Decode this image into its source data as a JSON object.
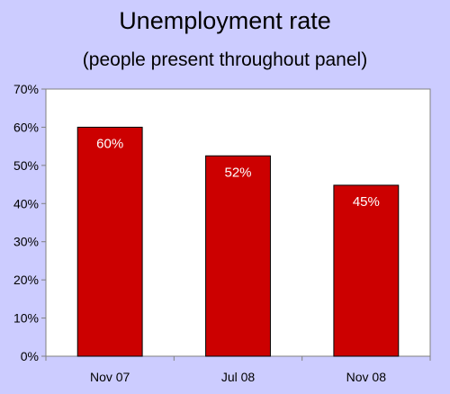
{
  "chart_data": {
    "type": "bar",
    "title": "Unemployment rate",
    "subtitle": "(people present throughout panel)",
    "categories": [
      "Nov 07",
      "Jul 08",
      "Nov 08"
    ],
    "values": [
      60,
      52.5,
      44.8
    ],
    "data_labels": [
      "60%",
      "52%",
      "45%"
    ],
    "ylim": [
      0,
      70
    ],
    "yticks": [
      0,
      10,
      20,
      30,
      40,
      50,
      60,
      70
    ],
    "ytick_labels": [
      "0%",
      "10%",
      "20%",
      "30%",
      "40%",
      "50%",
      "60%",
      "70%"
    ],
    "xlabel": "",
    "ylabel": "",
    "grid": false,
    "legend": "none",
    "colors": {
      "background": "#ccccff",
      "plot_area": "#ffffff",
      "bar": "#cc0000",
      "axis": "#808080"
    }
  }
}
